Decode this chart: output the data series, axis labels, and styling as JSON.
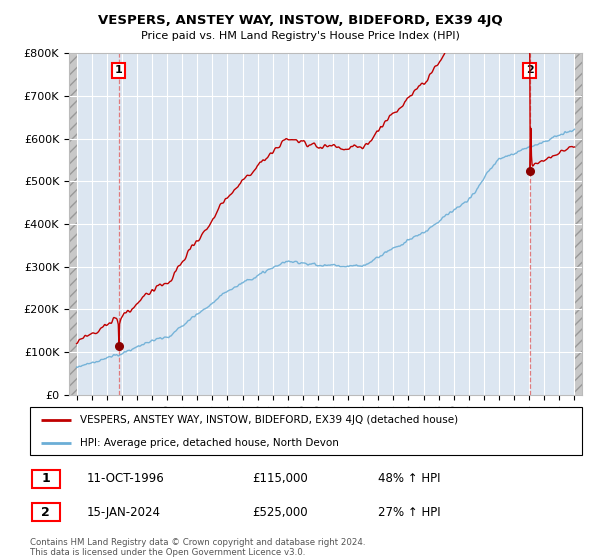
{
  "title": "VESPERS, ANSTEY WAY, INSTOW, BIDEFORD, EX39 4JQ",
  "subtitle": "Price paid vs. HM Land Registry's House Price Index (HPI)",
  "ylim": [
    0,
    800000
  ],
  "yticks": [
    0,
    100000,
    200000,
    300000,
    400000,
    500000,
    600000,
    700000,
    800000
  ],
  "ytick_labels": [
    "£0",
    "£100K",
    "£200K",
    "£300K",
    "£400K",
    "£500K",
    "£600K",
    "£700K",
    "£800K"
  ],
  "hpi_color": "#6baed6",
  "price_color": "#c00000",
  "marker_color": "#8b0000",
  "sale1_year": 1996.79,
  "sale1_price": 115000,
  "sale2_year": 2024.04,
  "sale2_price": 525000,
  "legend_label1": "VESPERS, ANSTEY WAY, INSTOW, BIDEFORD, EX39 4JQ (detached house)",
  "legend_label2": "HPI: Average price, detached house, North Devon",
  "note1_date": "11-OCT-1996",
  "note1_price": "£115,000",
  "note1_hpi": "48% ↑ HPI",
  "note2_date": "15-JAN-2024",
  "note2_price": "£525,000",
  "note2_hpi": "27% ↑ HPI",
  "footer": "Contains HM Land Registry data © Crown copyright and database right 2024.\nThis data is licensed under the Open Government Licence v3.0.",
  "bg_plot": "#dce6f1",
  "bg_hatch": "#c8c8c8",
  "grid_color": "#ffffff",
  "hatch_pattern": "///",
  "x_start": 1994,
  "x_end": 2027,
  "xlim_left": 1993.5,
  "xlim_right": 2027.5
}
